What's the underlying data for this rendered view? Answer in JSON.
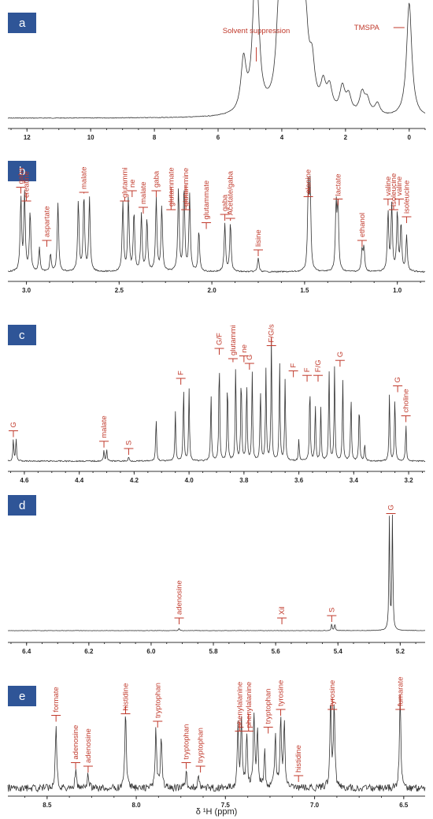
{
  "chart_data": [
    {
      "panel": "a",
      "type": "line",
      "x_reversed": true,
      "xlim": [
        12.6,
        -0.5
      ],
      "xticks": [
        "12",
        "10",
        "8",
        "6",
        "4",
        "2",
        "0"
      ],
      "xtick_values": [
        12,
        10,
        8,
        6,
        4,
        2,
        0
      ],
      "peaks": [
        {
          "x": 5.2,
          "h": 0.45
        },
        {
          "x": 4.85,
          "h": 0.72
        },
        {
          "x": 4.78,
          "h": 0.72
        },
        {
          "x": 4.1,
          "h": 0.55
        },
        {
          "x": 3.95,
          "h": 0.75
        },
        {
          "x": 3.85,
          "h": 0.82
        },
        {
          "x": 3.78,
          "h": 0.92
        },
        {
          "x": 3.7,
          "h": 0.85
        },
        {
          "x": 3.6,
          "h": 0.7
        },
        {
          "x": 3.5,
          "h": 0.8
        },
        {
          "x": 3.42,
          "h": 0.6
        },
        {
          "x": 3.25,
          "h": 0.55
        },
        {
          "x": 3.05,
          "h": 0.35
        },
        {
          "x": 2.7,
          "h": 0.22
        },
        {
          "x": 2.5,
          "h": 0.2
        },
        {
          "x": 2.1,
          "h": 0.22
        },
        {
          "x": 1.9,
          "h": 0.15
        },
        {
          "x": 1.48,
          "h": 0.18
        },
        {
          "x": 1.32,
          "h": 0.12
        },
        {
          "x": 1.0,
          "h": 0.1
        },
        {
          "x": 0.0,
          "h": 1.0
        }
      ],
      "annotations": [
        {
          "text": "Solvent suppression",
          "x": 4.8
        },
        {
          "text": "TMSPA",
          "x": 0.0
        }
      ]
    },
    {
      "panel": "b",
      "type": "line",
      "x_reversed": true,
      "xlim": [
        3.1,
        0.85
      ],
      "xticks": [
        "3.0",
        "2.5",
        "2.0",
        "1.5",
        "1.0"
      ],
      "xtick_values": [
        3.0,
        2.5,
        2.0,
        1.5,
        1.0
      ],
      "peaks": [
        {
          "x": 3.03,
          "h": 0.62
        },
        {
          "x": 3.01,
          "h": 0.65
        },
        {
          "x": 2.98,
          "h": 0.5
        },
        {
          "x": 2.93,
          "h": 0.2
        },
        {
          "x": 2.87,
          "h": 0.15
        },
        {
          "x": 2.83,
          "h": 0.58
        },
        {
          "x": 2.72,
          "h": 0.6
        },
        {
          "x": 2.69,
          "h": 0.65
        },
        {
          "x": 2.66,
          "h": 0.62
        },
        {
          "x": 2.48,
          "h": 0.58
        },
        {
          "x": 2.45,
          "h": 0.62
        },
        {
          "x": 2.42,
          "h": 0.5
        },
        {
          "x": 2.38,
          "h": 0.48
        },
        {
          "x": 2.35,
          "h": 0.45
        },
        {
          "x": 2.3,
          "h": 0.62
        },
        {
          "x": 2.27,
          "h": 0.55
        },
        {
          "x": 2.18,
          "h": 0.7
        },
        {
          "x": 2.15,
          "h": 0.72
        },
        {
          "x": 2.12,
          "h": 0.65
        },
        {
          "x": 2.07,
          "h": 0.35
        },
        {
          "x": 1.93,
          "h": 0.4
        },
        {
          "x": 1.9,
          "h": 0.42
        },
        {
          "x": 1.75,
          "h": 0.12
        },
        {
          "x": 1.48,
          "h": 0.68
        },
        {
          "x": 1.47,
          "h": 0.7
        },
        {
          "x": 1.33,
          "h": 0.55
        },
        {
          "x": 1.32,
          "h": 0.55
        },
        {
          "x": 1.19,
          "h": 0.18
        },
        {
          "x": 1.18,
          "h": 0.2
        },
        {
          "x": 1.05,
          "h": 0.5
        },
        {
          "x": 1.03,
          "h": 0.55
        },
        {
          "x": 1.0,
          "h": 0.5
        },
        {
          "x": 0.98,
          "h": 0.4
        },
        {
          "x": 0.95,
          "h": 0.3
        }
      ],
      "annotations": [
        {
          "text": "gaba",
          "x": 3.03
        },
        {
          "text": "creatine",
          "x": 3.0
        },
        {
          "text": "aspartate",
          "x": 2.89
        },
        {
          "text": "malate",
          "x": 2.69
        },
        {
          "text": "glutammi",
          "x": 2.47
        },
        {
          "text": "ne",
          "x": 2.43
        },
        {
          "text": "malate",
          "x": 2.37
        },
        {
          "text": "gaba",
          "x": 2.3
        },
        {
          "text": "glutammate",
          "x": 2.22
        },
        {
          "text": "glutammine",
          "x": 2.14
        },
        {
          "text": "glutammate",
          "x": 2.03
        },
        {
          "text": "gaba",
          "x": 1.93
        },
        {
          "text": "Acetate/gaba",
          "x": 1.9
        },
        {
          "text": "lisine",
          "x": 1.75
        },
        {
          "text": "alanine",
          "x": 1.48
        },
        {
          "text": "lactate",
          "x": 1.32
        },
        {
          "text": "ethanol",
          "x": 1.19
        },
        {
          "text": "valine",
          "x": 1.05
        },
        {
          "text": "isoleucine",
          "x": 1.02
        },
        {
          "text": "valine",
          "x": 0.99
        },
        {
          "text": "isoleucine",
          "x": 0.95
        }
      ]
    },
    {
      "panel": "c",
      "type": "line",
      "x_reversed": true,
      "xlim": [
        4.66,
        3.14
      ],
      "xticks": [
        "4.6",
        "4.4",
        "4.2",
        "4.0",
        "3.8",
        "3.6",
        "3.4",
        "3.2"
      ],
      "xtick_values": [
        4.6,
        4.4,
        4.2,
        4.0,
        3.8,
        3.6,
        3.4,
        3.2
      ],
      "peaks": [
        {
          "x": 4.64,
          "h": 0.15
        },
        {
          "x": 4.63,
          "h": 0.15
        },
        {
          "x": 4.31,
          "h": 0.07
        },
        {
          "x": 4.3,
          "h": 0.08
        },
        {
          "x": 4.22,
          "h": 0.03
        },
        {
          "x": 4.12,
          "h": 0.3
        },
        {
          "x": 4.05,
          "h": 0.33
        },
        {
          "x": 4.02,
          "h": 0.5
        },
        {
          "x": 4.0,
          "h": 0.48
        },
        {
          "x": 3.92,
          "h": 0.45
        },
        {
          "x": 3.89,
          "h": 0.7
        },
        {
          "x": 3.86,
          "h": 0.55
        },
        {
          "x": 3.83,
          "h": 0.65
        },
        {
          "x": 3.81,
          "h": 0.6
        },
        {
          "x": 3.79,
          "h": 0.55
        },
        {
          "x": 3.77,
          "h": 0.6
        },
        {
          "x": 3.74,
          "h": 0.5
        },
        {
          "x": 3.72,
          "h": 0.62
        },
        {
          "x": 3.7,
          "h": 0.82
        },
        {
          "x": 3.67,
          "h": 0.65
        },
        {
          "x": 3.65,
          "h": 0.55
        },
        {
          "x": 3.6,
          "h": 0.15
        },
        {
          "x": 3.56,
          "h": 0.52
        },
        {
          "x": 3.54,
          "h": 0.38
        },
        {
          "x": 3.52,
          "h": 0.35
        },
        {
          "x": 3.49,
          "h": 0.62
        },
        {
          "x": 3.47,
          "h": 0.62
        },
        {
          "x": 3.44,
          "h": 0.55
        },
        {
          "x": 3.41,
          "h": 0.45
        },
        {
          "x": 3.38,
          "h": 0.4
        },
        {
          "x": 3.36,
          "h": 0.12
        },
        {
          "x": 3.27,
          "h": 0.45
        },
        {
          "x": 3.25,
          "h": 0.45
        },
        {
          "x": 3.21,
          "h": 0.25
        }
      ],
      "annotations": [
        {
          "text": "G",
          "x": 4.64
        },
        {
          "text": "malate",
          "x": 4.31
        },
        {
          "text": "S",
          "x": 4.22
        },
        {
          "text": "F",
          "x": 4.03
        },
        {
          "text": "G/F",
          "x": 3.89
        },
        {
          "text": "glutammi",
          "x": 3.84
        },
        {
          "text": "ne",
          "x": 3.8
        },
        {
          "text": "G",
          "x": 3.78
        },
        {
          "text": "F/G/s",
          "x": 3.7
        },
        {
          "text": "F",
          "x": 3.62
        },
        {
          "text": "F",
          "x": 3.57
        },
        {
          "text": "F/G",
          "x": 3.53
        },
        {
          "text": "G",
          "x": 3.45
        },
        {
          "text": "G",
          "x": 3.24
        },
        {
          "text": "choline",
          "x": 3.21
        }
      ]
    },
    {
      "panel": "d",
      "type": "line",
      "x_reversed": true,
      "xlim": [
        6.46,
        5.12
      ],
      "xticks": [
        "6.4",
        "6.2",
        "6.0",
        "5.8",
        "5.6",
        "5.4",
        "5.2"
      ],
      "xtick_values": [
        6.4,
        6.2,
        6.0,
        5.8,
        5.6,
        5.4,
        5.2
      ],
      "peaks": [
        {
          "x": 5.91,
          "h": 0.02
        },
        {
          "x": 5.42,
          "h": 0.06
        },
        {
          "x": 5.41,
          "h": 0.06
        },
        {
          "x": 5.235,
          "h": 0.95
        },
        {
          "x": 5.225,
          "h": 0.98
        }
      ],
      "annotations": [
        {
          "text": "adenosine",
          "x": 5.91
        },
        {
          "text": "Xil",
          "x": 5.58
        },
        {
          "text": "S",
          "x": 5.42
        },
        {
          "text": "G",
          "x": 5.23
        }
      ]
    },
    {
      "panel": "e",
      "type": "line",
      "x_reversed": true,
      "xlim": [
        8.72,
        6.38
      ],
      "xticks": [
        "8.5",
        "8.0",
        "7.5",
        "7.0",
        "6.5"
      ],
      "xtick_values": [
        8.5,
        8.0,
        7.5,
        7.0,
        6.5
      ],
      "xlabel": "δ ¹H (ppm)",
      "peaks": [
        {
          "x": 8.45,
          "h": 0.55
        },
        {
          "x": 8.34,
          "h": 0.15
        },
        {
          "x": 8.27,
          "h": 0.12
        },
        {
          "x": 8.06,
          "h": 0.68
        },
        {
          "x": 7.89,
          "h": 0.5
        },
        {
          "x": 7.86,
          "h": 0.45
        },
        {
          "x": 7.72,
          "h": 0.15
        },
        {
          "x": 7.65,
          "h": 0.12
        },
        {
          "x": 7.43,
          "h": 0.52
        },
        {
          "x": 7.41,
          "h": 0.55
        },
        {
          "x": 7.38,
          "h": 0.45
        },
        {
          "x": 7.34,
          "h": 0.62
        },
        {
          "x": 7.32,
          "h": 0.5
        },
        {
          "x": 7.28,
          "h": 0.3
        },
        {
          "x": 7.22,
          "h": 0.45
        },
        {
          "x": 7.19,
          "h": 0.6
        },
        {
          "x": 7.17,
          "h": 0.55
        },
        {
          "x": 6.91,
          "h": 0.75
        },
        {
          "x": 6.89,
          "h": 0.72
        },
        {
          "x": 6.52,
          "h": 0.78
        }
      ],
      "annotations": [
        {
          "text": "formate",
          "x": 8.45
        },
        {
          "text": "adenosine",
          "x": 8.34
        },
        {
          "text": "adenosine",
          "x": 8.27
        },
        {
          "text": "histidine",
          "x": 8.06
        },
        {
          "text": "tryptophan",
          "x": 7.88
        },
        {
          "text": "tryptophan",
          "x": 7.72
        },
        {
          "text": "tryptophan",
          "x": 7.64
        },
        {
          "text": "phenylalanine",
          "x": 7.42
        },
        {
          "text": "phenylalanine",
          "x": 7.37
        },
        {
          "text": "tryptophan",
          "x": 7.26
        },
        {
          "text": "tyrosine",
          "x": 7.19
        },
        {
          "text": "histidine",
          "x": 7.09
        },
        {
          "text": "tyrosine",
          "x": 6.9
        },
        {
          "text": "fumarate",
          "x": 6.52
        }
      ]
    }
  ]
}
